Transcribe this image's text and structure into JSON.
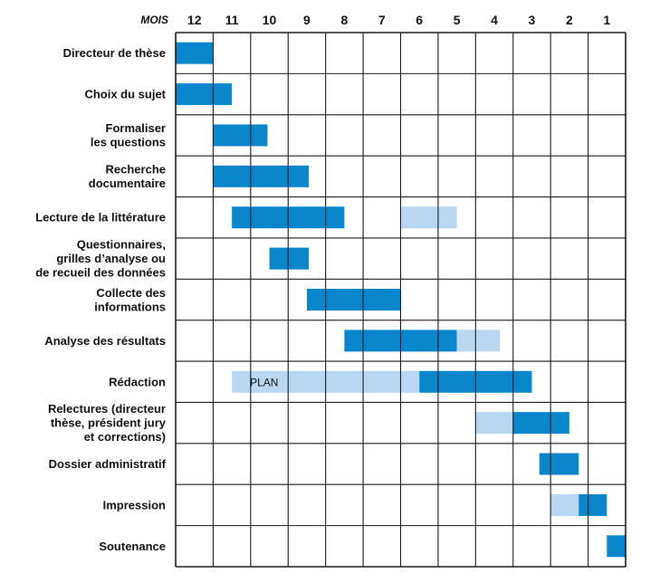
{
  "chart_data": {
    "type": "gantt",
    "axis_label": "MOIS",
    "months": [
      "12",
      "11",
      "10",
      "9",
      "8",
      "7",
      "6",
      "5",
      "4",
      "3",
      "2",
      "1"
    ],
    "colors": {
      "main": "#0a87cc",
      "light": "#b9d7f0",
      "grid": "#1a1a1a"
    },
    "tasks": [
      {
        "label": [
          "Directeur de thèse"
        ],
        "bars": [
          {
            "start": 0,
            "end": 1.0,
            "kind": "main"
          }
        ]
      },
      {
        "label": [
          "Choix du sujet"
        ],
        "bars": [
          {
            "start": 0,
            "end": 1.5,
            "kind": "main"
          }
        ]
      },
      {
        "label": [
          "Formaliser",
          "les questions"
        ],
        "bars": [
          {
            "start": 1.0,
            "end": 2.45,
            "kind": "main"
          }
        ]
      },
      {
        "label": [
          "Recherche",
          "documentaire"
        ],
        "bars": [
          {
            "start": 1.0,
            "end": 3.55,
            "kind": "main"
          }
        ]
      },
      {
        "label": [
          "Lecture de la littérature"
        ],
        "bars": [
          {
            "start": 1.5,
            "end": 4.5,
            "kind": "main"
          },
          {
            "start": 6.0,
            "end": 7.5,
            "kind": "light"
          }
        ]
      },
      {
        "label": [
          "Questionnaires,",
          "grilles d’analyse ou",
          "de recueil des données"
        ],
        "bars": [
          {
            "start": 2.5,
            "end": 3.55,
            "kind": "main"
          }
        ]
      },
      {
        "label": [
          "Collecte des",
          "informations"
        ],
        "bars": [
          {
            "start": 3.5,
            "end": 6.0,
            "kind": "main"
          }
        ]
      },
      {
        "label": [
          "Analyse des résultats"
        ],
        "bars": [
          {
            "start": 4.5,
            "end": 7.5,
            "kind": "main"
          },
          {
            "start": 7.5,
            "end": 8.65,
            "kind": "light"
          }
        ]
      },
      {
        "label": [
          "Rédaction"
        ],
        "bars": [
          {
            "start": 1.5,
            "end": 6.5,
            "kind": "light",
            "text": "PLAN"
          },
          {
            "start": 6.5,
            "end": 9.5,
            "kind": "main"
          }
        ]
      },
      {
        "label": [
          "Relectures (directeur",
          "thèse, président jury",
          "et corrections)"
        ],
        "bars": [
          {
            "start": 8.0,
            "end": 9.0,
            "kind": "light"
          },
          {
            "start": 9.0,
            "end": 10.5,
            "kind": "main"
          }
        ]
      },
      {
        "label": [
          "Dossier administratif"
        ],
        "bars": [
          {
            "start": 9.7,
            "end": 10.75,
            "kind": "main"
          }
        ]
      },
      {
        "label": [
          "Impression"
        ],
        "bars": [
          {
            "start": 10.0,
            "end": 10.75,
            "kind": "light"
          },
          {
            "start": 10.75,
            "end": 11.5,
            "kind": "main"
          }
        ]
      },
      {
        "label": [
          "Soutenance"
        ],
        "bars": [
          {
            "start": 11.5,
            "end": 12.0,
            "kind": "main"
          }
        ]
      }
    ]
  }
}
